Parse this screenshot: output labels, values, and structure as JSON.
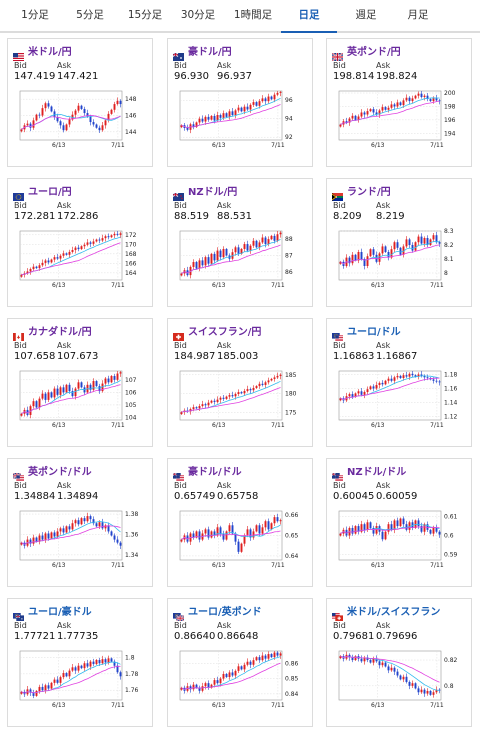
{
  "tabs": [
    {
      "label": "1分足"
    },
    {
      "label": "5分足"
    },
    {
      "label": "15分足"
    },
    {
      "label": "30分足"
    },
    {
      "label": "1時間足"
    },
    {
      "label": "日足",
      "active": true
    },
    {
      "label": "週足"
    },
    {
      "label": "月足"
    }
  ],
  "colors": {
    "up": "#e02020",
    "down": "#2244cc",
    "ma_magenta": "#e040e0",
    "ma_cyan": "#33bbee",
    "title_purple": "#6a2a9e",
    "title_blue": "#1a5fb4"
  },
  "labels": {
    "bid": "Bid",
    "ask": "Ask"
  },
  "cards": [
    {
      "title": "米ドル/円",
      "flag": "us",
      "bid": "147.419",
      "ask": "147.421",
      "chart_data": {
        "type": "candlestick",
        "y_ticks": [
          "148",
          "146",
          "144"
        ],
        "x_ticks": [
          "6/13",
          "7/11"
        ],
        "ylim": [
          143,
          149
        ],
        "close": [
          144.3,
          144.8,
          145.0,
          144.5,
          145.4,
          146.1,
          146.0,
          146.9,
          147.5,
          147.1,
          146.5,
          145.8,
          145.3,
          144.8,
          144.2,
          144.9,
          145.5,
          146.1,
          146.6,
          147.2,
          146.8,
          146.3,
          145.9,
          145.2,
          144.9,
          144.5,
          144.2,
          144.8,
          145.4,
          146.2,
          146.7,
          147.4,
          147.8,
          147.4
        ]
      }
    },
    {
      "title": "豪ドル/円",
      "flag": "au",
      "bid": "96.930",
      "ask": "96.937",
      "chart_data": {
        "type": "candlestick",
        "y_ticks": [
          "96",
          "94",
          "92"
        ],
        "x_ticks": [
          "6/13",
          "7/11"
        ],
        "ylim": [
          91.7,
          97
        ],
        "close": [
          93.3,
          93.0,
          92.8,
          93.4,
          93.1,
          93.6,
          94.0,
          93.7,
          94.2,
          93.9,
          94.3,
          93.8,
          94.4,
          94.1,
          94.6,
          94.2,
          94.8,
          94.4,
          94.9,
          95.2,
          94.8,
          95.3,
          95.0,
          95.5,
          95.8,
          95.4,
          95.9,
          96.2,
          95.9,
          96.4,
          96.1,
          96.6,
          96.8,
          96.9
        ]
      }
    },
    {
      "title": "英ポンド/円",
      "flag": "gb",
      "bid": "198.814",
      "ask": "198.824",
      "chart_data": {
        "type": "candlestick",
        "y_ticks": [
          "200",
          "198",
          "196",
          "194"
        ],
        "x_ticks": [
          "6/13",
          "7/11"
        ],
        "ylim": [
          193,
          200.3
        ],
        "close": [
          195.3,
          195.8,
          195.6,
          196.2,
          196.6,
          196.0,
          196.5,
          197.1,
          196.8,
          197.3,
          197.6,
          197.1,
          196.8,
          197.4,
          197.9,
          197.5,
          197.8,
          198.3,
          198.0,
          198.6,
          198.2,
          198.9,
          199.3,
          198.8,
          199.2,
          199.6,
          199.9,
          199.4,
          199.6,
          199.1,
          198.8,
          199.2,
          198.9,
          198.8
        ]
      }
    },
    {
      "title": "ユーロ/円",
      "flag": "eu",
      "bid": "172.281",
      "ask": "172.286",
      "chart_data": {
        "type": "candlestick",
        "y_ticks": [
          "172",
          "170",
          "168",
          "166",
          "164"
        ],
        "x_ticks": [
          "6/13",
          "7/11"
        ],
        "ylim": [
          162.5,
          172.8
        ],
        "close": [
          163.6,
          163.9,
          164.3,
          164.8,
          165.3,
          165.0,
          165.6,
          166.1,
          166.6,
          166.2,
          166.8,
          167.3,
          167.0,
          167.6,
          168.1,
          167.8,
          168.4,
          168.8,
          169.3,
          169.0,
          169.6,
          169.9,
          170.4,
          170.1,
          170.6,
          171.0,
          170.8,
          171.3,
          171.7,
          171.5,
          171.9,
          172.2,
          172.0,
          172.3
        ]
      }
    },
    {
      "title": "NZドル/円",
      "flag": "nz",
      "bid": "88.519",
      "ask": "88.531",
      "chart_data": {
        "type": "candlestick",
        "y_ticks": [
          "88",
          "87",
          "86"
        ],
        "x_ticks": [
          "6/13",
          "7/11"
        ],
        "ylim": [
          85.5,
          88.5
        ],
        "close": [
          85.9,
          86.1,
          85.8,
          86.3,
          86.6,
          86.2,
          86.7,
          86.4,
          86.9,
          86.5,
          87.1,
          86.7,
          87.3,
          86.9,
          87.4,
          87.0,
          86.8,
          87.2,
          87.5,
          87.1,
          87.4,
          87.7,
          87.3,
          87.6,
          87.9,
          87.5,
          87.8,
          88.1,
          87.7,
          88.0,
          88.2,
          87.9,
          88.3,
          88.4
        ]
      }
    },
    {
      "title": "ランド/円",
      "flag": "za",
      "bid": "8.209",
      "ask": "8.219",
      "chart_data": {
        "type": "candlestick",
        "y_ticks": [
          "8.3",
          "8.2",
          "8.1",
          "8"
        ],
        "x_ticks": [
          "6/13",
          "7/11"
        ],
        "ylim": [
          7.95,
          8.3
        ],
        "close": [
          8.08,
          8.05,
          8.11,
          8.07,
          8.13,
          8.09,
          8.15,
          8.1,
          8.05,
          8.12,
          8.17,
          8.13,
          8.08,
          8.14,
          8.19,
          8.15,
          8.11,
          8.17,
          8.22,
          8.18,
          8.13,
          8.19,
          8.24,
          8.2,
          8.16,
          8.22,
          8.26,
          8.21,
          8.25,
          8.2,
          8.24,
          8.27,
          8.22,
          8.21
        ]
      }
    },
    {
      "title": "カナダドル/円",
      "flag": "ca",
      "bid": "107.658",
      "ask": "107.673",
      "chart_data": {
        "type": "candlestick",
        "y_ticks": [
          "107",
          "106",
          "105",
          "104"
        ],
        "x_ticks": [
          "6/13",
          "7/11"
        ],
        "ylim": [
          103.8,
          107.7
        ],
        "close": [
          104.3,
          104.6,
          104.2,
          104.9,
          105.3,
          104.8,
          105.5,
          105.9,
          105.4,
          106.0,
          105.6,
          106.3,
          105.8,
          106.4,
          106.0,
          106.6,
          106.1,
          105.7,
          106.3,
          106.8,
          106.4,
          106.0,
          106.6,
          106.2,
          106.9,
          106.5,
          106.1,
          106.7,
          107.1,
          106.8,
          107.3,
          107.0,
          107.5,
          107.6
        ]
      }
    },
    {
      "title": "スイスフラン/円",
      "flag": "ch",
      "bid": "184.987",
      "ask": "185.003",
      "chart_data": {
        "type": "candlestick",
        "y_ticks": [
          "185",
          "180",
          "175"
        ],
        "x_ticks": [
          "6/13",
          "7/11"
        ],
        "ylim": [
          173,
          186
        ],
        "close": [
          175.1,
          175.5,
          175.3,
          175.9,
          176.4,
          176.1,
          176.7,
          177.2,
          176.9,
          177.6,
          178.1,
          177.8,
          178.4,
          178.9,
          178.6,
          179.2,
          179.6,
          179.3,
          179.9,
          180.4,
          180.1,
          180.7,
          181.2,
          180.9,
          181.5,
          182.0,
          182.6,
          182.3,
          183.0,
          183.5,
          183.9,
          184.3,
          184.7,
          185.0
        ]
      }
    },
    {
      "title": "ユーロ/ドル",
      "flag": "eu-us",
      "bid": "1.16863",
      "ask": "1.16867",
      "blue": true,
      "chart_data": {
        "type": "candlestick",
        "y_ticks": [
          "1.18",
          "1.16",
          "1.14",
          "1.12"
        ],
        "x_ticks": [
          "6/13",
          "7/11"
        ],
        "ylim": [
          1.115,
          1.185
        ],
        "close": [
          1.146,
          1.143,
          1.149,
          1.152,
          1.148,
          1.153,
          1.156,
          1.151,
          1.155,
          1.159,
          1.163,
          1.16,
          1.165,
          1.168,
          1.166,
          1.171,
          1.174,
          1.171,
          1.176,
          1.178,
          1.175,
          1.179,
          1.177,
          1.181,
          1.179,
          1.177,
          1.18,
          1.178,
          1.176,
          1.175,
          1.173,
          1.171,
          1.17,
          1.169
        ]
      }
    },
    {
      "title": "英ポンド/ドル",
      "flag": "gb-us",
      "bid": "1.34884",
      "ask": "1.34894",
      "chart_data": {
        "type": "candlestick",
        "y_ticks": [
          "1.38",
          "1.36",
          "1.34"
        ],
        "x_ticks": [
          "6/13",
          "7/11"
        ],
        "ylim": [
          1.335,
          1.383
        ],
        "close": [
          1.352,
          1.349,
          1.355,
          1.351,
          1.357,
          1.353,
          1.359,
          1.355,
          1.361,
          1.356,
          1.362,
          1.358,
          1.363,
          1.366,
          1.362,
          1.368,
          1.365,
          1.371,
          1.374,
          1.37,
          1.376,
          1.373,
          1.378,
          1.375,
          1.371,
          1.368,
          1.372,
          1.366,
          1.369,
          1.363,
          1.359,
          1.355,
          1.352,
          1.349
        ]
      }
    },
    {
      "title": "豪ドル/ドル",
      "flag": "au-us",
      "bid": "0.65749",
      "ask": "0.65758",
      "chart_data": {
        "type": "candlestick",
        "y_ticks": [
          "0.66",
          "0.65",
          "0.64"
        ],
        "x_ticks": [
          "6/13",
          "7/11"
        ],
        "ylim": [
          0.638,
          0.662
        ],
        "close": [
          0.648,
          0.65,
          0.647,
          0.651,
          0.649,
          0.652,
          0.648,
          0.651,
          0.653,
          0.649,
          0.652,
          0.65,
          0.654,
          0.651,
          0.648,
          0.652,
          0.655,
          0.651,
          0.647,
          0.642,
          0.646,
          0.65,
          0.653,
          0.649,
          0.652,
          0.655,
          0.651,
          0.654,
          0.657,
          0.653,
          0.656,
          0.659,
          0.657,
          0.6575
        ]
      }
    },
    {
      "title": "NZドル/ドル",
      "flag": "nz-us",
      "bid": "0.60045",
      "ask": "0.60059",
      "chart_data": {
        "type": "candlestick",
        "y_ticks": [
          "0.61",
          "0.6",
          "0.59"
        ],
        "x_ticks": [
          "6/13",
          "7/11"
        ],
        "ylim": [
          0.587,
          0.613
        ],
        "close": [
          0.601,
          0.603,
          0.6,
          0.604,
          0.601,
          0.605,
          0.602,
          0.606,
          0.603,
          0.607,
          0.604,
          0.601,
          0.605,
          0.602,
          0.598,
          0.602,
          0.606,
          0.603,
          0.608,
          0.605,
          0.609,
          0.606,
          0.603,
          0.607,
          0.604,
          0.608,
          0.605,
          0.602,
          0.606,
          0.603,
          0.601,
          0.604,
          0.602,
          0.6005
        ]
      }
    },
    {
      "title": "ユーロ/豪ドル",
      "flag": "eu-au",
      "bid": "1.77721",
      "ask": "1.77735",
      "blue": true,
      "chart_data": {
        "type": "candlestick",
        "y_ticks": [
          "1.8",
          "1.78",
          "1.76"
        ],
        "x_ticks": [
          "6/13",
          "7/11"
        ],
        "ylim": [
          1.748,
          1.808
        ],
        "close": [
          1.758,
          1.755,
          1.761,
          1.757,
          1.753,
          1.759,
          1.764,
          1.76,
          1.766,
          1.762,
          1.769,
          1.773,
          1.769,
          1.776,
          1.781,
          1.777,
          1.784,
          1.788,
          1.784,
          1.79,
          1.787,
          1.793,
          1.789,
          1.795,
          1.792,
          1.797,
          1.793,
          1.798,
          1.794,
          1.799,
          1.795,
          1.79,
          1.782,
          1.777
        ]
      }
    },
    {
      "title": "ユーロ/英ポンド",
      "flag": "eu-gb",
      "bid": "0.86640",
      "ask": "0.86648",
      "blue": true,
      "chart_data": {
        "type": "candlestick",
        "y_ticks": [
          "0.86",
          "0.85",
          "0.84"
        ],
        "x_ticks": [
          "6/13",
          "7/11"
        ],
        "ylim": [
          0.836,
          0.868
        ],
        "close": [
          0.844,
          0.842,
          0.845,
          0.843,
          0.846,
          0.844,
          0.842,
          0.845,
          0.847,
          0.844,
          0.846,
          0.849,
          0.847,
          0.85,
          0.853,
          0.851,
          0.854,
          0.852,
          0.855,
          0.858,
          0.856,
          0.859,
          0.861,
          0.859,
          0.862,
          0.864,
          0.862,
          0.865,
          0.863,
          0.866,
          0.864,
          0.867,
          0.865,
          0.8664
        ]
      }
    },
    {
      "title": "米ドル/スイスフラン",
      "flag": "us-ch",
      "bid": "0.79681",
      "ask": "0.79696",
      "blue": true,
      "chart_data": {
        "type": "candlestick",
        "y_ticks": [
          "0.82",
          "0.8"
        ],
        "x_ticks": [
          "6/13",
          "7/11"
        ],
        "ylim": [
          0.789,
          0.827
        ],
        "close": [
          0.823,
          0.821,
          0.824,
          0.822,
          0.82,
          0.823,
          0.821,
          0.819,
          0.822,
          0.82,
          0.818,
          0.821,
          0.819,
          0.816,
          0.818,
          0.815,
          0.812,
          0.814,
          0.811,
          0.808,
          0.805,
          0.807,
          0.803,
          0.8,
          0.802,
          0.798,
          0.795,
          0.797,
          0.794,
          0.796,
          0.793,
          0.795,
          0.797,
          0.7968
        ]
      }
    }
  ]
}
